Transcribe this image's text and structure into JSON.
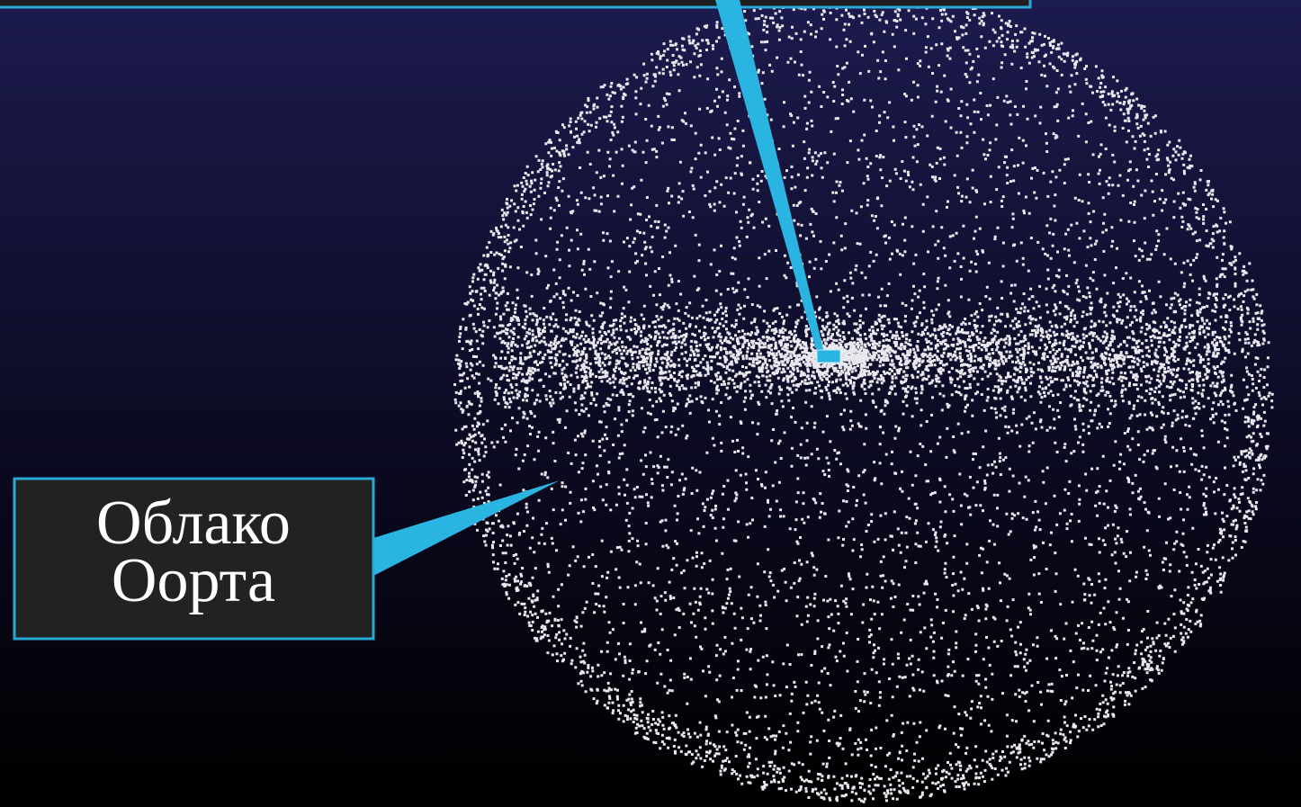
{
  "callout": {
    "lines": [
      "Облако",
      "Оорта"
    ]
  }
}
